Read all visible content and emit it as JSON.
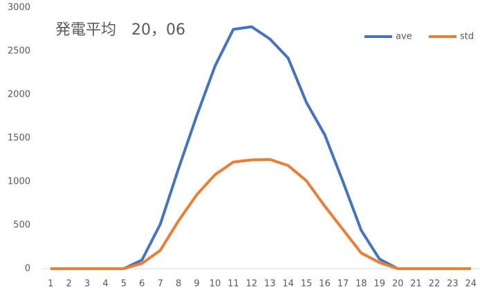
{
  "chart_data": {
    "type": "line",
    "title": "発電平均　20，06",
    "categories": [
      "1",
      "2",
      "3",
      "4",
      "5",
      "6",
      "7",
      "8",
      "9",
      "10",
      "11",
      "12",
      "13",
      "14",
      "15",
      "16",
      "17",
      "18",
      "19",
      "20",
      "21",
      "22",
      "23",
      "24"
    ],
    "series": [
      {
        "name": "ave",
        "color": "#4472c4",
        "values": [
          0,
          0,
          0,
          0,
          0,
          100,
          510,
          1150,
          1760,
          2330,
          2750,
          2780,
          2640,
          2420,
          1910,
          1540,
          1000,
          440,
          110,
          0,
          0,
          0,
          0,
          0
        ]
      },
      {
        "name": "std",
        "color": "#ed7d31",
        "values": [
          0,
          0,
          0,
          0,
          0,
          60,
          210,
          550,
          850,
          1080,
          1225,
          1250,
          1255,
          1185,
          1010,
          720,
          450,
          180,
          70,
          0,
          0,
          0,
          0,
          0
        ]
      }
    ],
    "ylim": [
      0,
      3000
    ],
    "yticks": [
      0,
      500,
      1000,
      1500,
      2000,
      2500,
      3000
    ],
    "grid": false,
    "legend": "top-right"
  }
}
